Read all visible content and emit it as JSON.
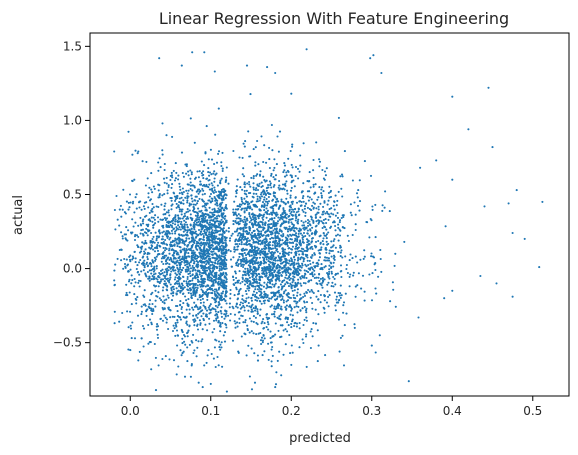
{
  "chart_data": {
    "type": "scatter",
    "title": "Linear Regression With Feature Engineering",
    "xlabel": "predicted",
    "ylabel": "actual",
    "xlim": [
      -0.05,
      0.545
    ],
    "ylim": [
      -0.86,
      1.59
    ],
    "x_ticks": [
      0.0,
      0.1,
      0.2,
      0.3,
      0.4,
      0.5
    ],
    "x_tick_labels": [
      "0.0",
      "0.1",
      "0.2",
      "0.3",
      "0.4",
      "0.5"
    ],
    "y_ticks": [
      -0.5,
      0.0,
      0.5,
      1.0,
      1.5
    ],
    "y_tick_labels": [
      "−0.5",
      "0.0",
      "0.5",
      "1.0",
      "1.5"
    ],
    "grid": false,
    "legend": "none",
    "marker_color": "#1f77b4",
    "point_count": 5000,
    "distribution": {
      "x_mean": 0.12,
      "x_std": 0.06,
      "y_mean": 0.12,
      "y_std": 0.28,
      "x_min": -0.02,
      "x_max": 0.51,
      "y_min": -0.82,
      "y_max": 1.48
    },
    "points": [
      [
        0.036,
        1.42
      ],
      [
        0.077,
        1.46
      ],
      [
        0.092,
        1.46
      ],
      [
        0.219,
        1.48
      ],
      [
        0.298,
        1.42
      ],
      [
        0.302,
        1.44
      ],
      [
        0.312,
        1.32
      ],
      [
        0.145,
        1.37
      ],
      [
        0.064,
        1.37
      ],
      [
        0.17,
        1.36
      ],
      [
        0.105,
        1.33
      ],
      [
        0.18,
        1.32
      ],
      [
        0.445,
        1.22
      ],
      [
        0.4,
        1.16
      ],
      [
        0.2,
        1.18
      ],
      [
        0.04,
        0.98
      ],
      [
        0.11,
        1.08
      ],
      [
        0.045,
        0.9
      ],
      [
        0.42,
        0.94
      ],
      [
        0.45,
        0.82
      ],
      [
        -0.02,
        0.79
      ],
      [
        0.01,
        0.79
      ],
      [
        0.38,
        0.73
      ],
      [
        0.36,
        0.68
      ],
      [
        0.4,
        0.6
      ],
      [
        0.48,
        0.53
      ],
      [
        0.512,
        0.45
      ],
      [
        0.47,
        0.44
      ],
      [
        0.44,
        0.42
      ],
      [
        0.49,
        0.2
      ],
      [
        0.475,
        0.24
      ],
      [
        0.508,
        0.01
      ],
      [
        0.475,
        -0.19
      ],
      [
        0.455,
        -0.1
      ],
      [
        0.435,
        -0.05
      ],
      [
        0.4,
        -0.15
      ],
      [
        0.39,
        -0.2
      ],
      [
        0.358,
        -0.33
      ],
      [
        0.346,
        -0.76
      ],
      [
        0.31,
        -0.45
      ],
      [
        0.3,
        -0.52
      ],
      [
        0.26,
        -0.56
      ],
      [
        0.2,
        -0.65
      ],
      [
        0.18,
        -0.8
      ],
      [
        0.155,
        -0.77
      ],
      [
        0.12,
        -0.83
      ],
      [
        0.09,
        -0.8
      ],
      [
        0.085,
        -0.77
      ],
      [
        0.068,
        -0.73
      ],
      [
        0.032,
        -0.82
      ],
      [
        0.026,
        -0.68
      ],
      [
        0.01,
        -0.62
      ],
      [
        0.0,
        -0.55
      ],
      [
        -0.01,
        -0.3
      ],
      [
        -0.02,
        -0.08
      ],
      [
        0.0,
        0.05
      ],
      [
        -0.005,
        0.28
      ],
      [
        0.005,
        0.6
      ],
      [
        0.02,
        0.72
      ],
      [
        0.035,
        0.66
      ]
    ]
  }
}
